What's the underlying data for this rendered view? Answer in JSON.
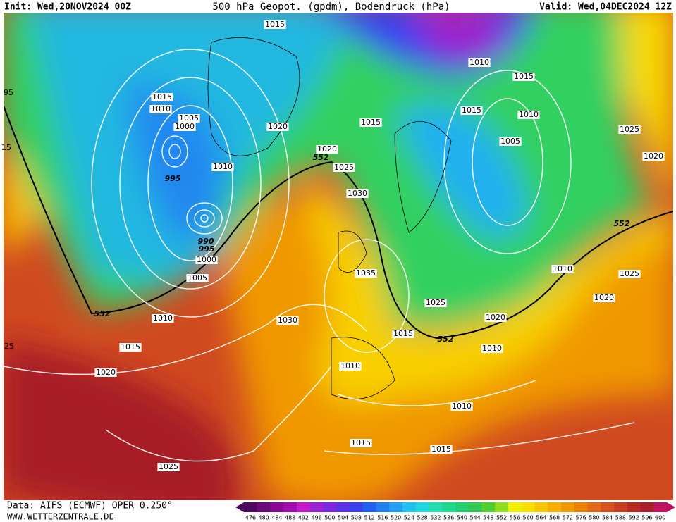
{
  "header": {
    "init": "Init: Wed,20NOV2024 00Z",
    "title": "500 hPa Geopot. (gpdm), Bodendruck (hPa)",
    "valid": "Valid: Wed,04DEC2024 12Z"
  },
  "map": {
    "labels": [
      "1015",
      "1010",
      "1015",
      "1015",
      "1010",
      "1005",
      "1000",
      "1020",
      "1015",
      "1015",
      "1010",
      "1025",
      "1005",
      "1020",
      "552",
      "1025",
      "1010",
      "995",
      "1020",
      "1030",
      "990",
      "995",
      "1000",
      "552",
      "1005",
      "1035",
      "1010",
      "1025",
      "1020",
      "552",
      "1010",
      "1030",
      "1025",
      "1020",
      "1015",
      "552",
      "1010",
      "1015",
      "1010",
      "1020",
      "1010",
      "1015",
      "1015",
      "1025",
      "95",
      "15",
      "25"
    ]
  },
  "colorbar": {
    "labels": [
      "476",
      "480",
      "484",
      "488",
      "492",
      "496",
      "500",
      "504",
      "508",
      "512",
      "516",
      "520",
      "524",
      "528",
      "532",
      "536",
      "540",
      "544",
      "548",
      "552",
      "556",
      "560",
      "564",
      "568",
      "572",
      "576",
      "580",
      "584",
      "588",
      "592",
      "596",
      "600"
    ],
    "colors": [
      "#4b0a5e",
      "#6a0a7a",
      "#8a0a96",
      "#a20aae",
      "#c21acb",
      "#9a20d8",
      "#7a28e0",
      "#5a30e8",
      "#3a40f0",
      "#2060f0",
      "#2080f0",
      "#20a0f0",
      "#20c0f0",
      "#20d8e0",
      "#20e0b0",
      "#20d890",
      "#20d070",
      "#30c850",
      "#50d030",
      "#90e020",
      "#f0f000",
      "#f8e000",
      "#f8c800",
      "#f8b000",
      "#f09800",
      "#e88000",
      "#e06818",
      "#d85020",
      "#c83c20",
      "#b82820",
      "#a81e28",
      "#c01060"
    ]
  },
  "footer": {
    "source": "Data: AIFS (ECMWF) OPER 0.250°",
    "site": "WWW.WETTERZENTRALE.DE"
  }
}
